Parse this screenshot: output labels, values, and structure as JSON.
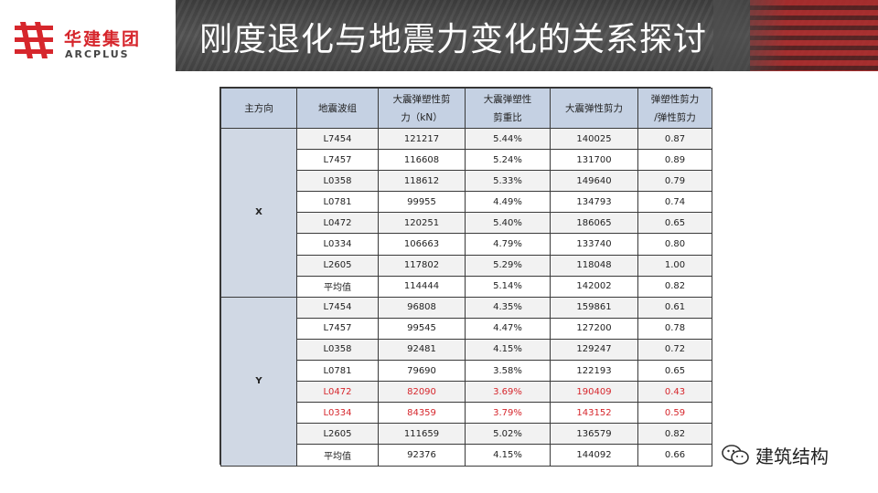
{
  "header": {
    "logo_cn": "华建集团",
    "logo_en": "ARCPLUS",
    "title": "刚度退化与地震力变化的关系探讨"
  },
  "table": {
    "columns": [
      "主方向",
      "地震波组",
      "大震弹塑性剪力（kN）",
      "大震弹塑性剪重比",
      "大震弹性剪力",
      "弹塑性剪力/弹性剪力"
    ],
    "column_lines": [
      [
        "主方向"
      ],
      [
        "地震波组"
      ],
      [
        "大震弹塑性剪",
        "力（kN）"
      ],
      [
        "大震弹塑性",
        "剪重比"
      ],
      [
        "大震弹性剪力"
      ],
      [
        "弹塑性剪力",
        "/弹性剪力"
      ]
    ],
    "groups": [
      {
        "direction": "X",
        "rows": [
          {
            "wave": "L7454",
            "ep_shear": "121217",
            "ratio": "5.44%",
            "el_shear": "140025",
            "quot": "0.87",
            "highlight": false
          },
          {
            "wave": "L7457",
            "ep_shear": "116608",
            "ratio": "5.24%",
            "el_shear": "131700",
            "quot": "0.89",
            "highlight": false
          },
          {
            "wave": "L0358",
            "ep_shear": "118612",
            "ratio": "5.33%",
            "el_shear": "149640",
            "quot": "0.79",
            "highlight": false
          },
          {
            "wave": "L0781",
            "ep_shear": "99955",
            "ratio": "4.49%",
            "el_shear": "134793",
            "quot": "0.74",
            "highlight": false
          },
          {
            "wave": "L0472",
            "ep_shear": "120251",
            "ratio": "5.40%",
            "el_shear": "186065",
            "quot": "0.65",
            "highlight": false
          },
          {
            "wave": "L0334",
            "ep_shear": "106663",
            "ratio": "4.79%",
            "el_shear": "133740",
            "quot": "0.80",
            "highlight": false
          },
          {
            "wave": "L2605",
            "ep_shear": "117802",
            "ratio": "5.29%",
            "el_shear": "118048",
            "quot": "1.00",
            "highlight": false
          },
          {
            "wave": "平均值",
            "ep_shear": "114444",
            "ratio": "5.14%",
            "el_shear": "142002",
            "quot": "0.82",
            "highlight": false
          }
        ]
      },
      {
        "direction": "Y",
        "rows": [
          {
            "wave": "L7454",
            "ep_shear": "96808",
            "ratio": "4.35%",
            "el_shear": "159861",
            "quot": "0.61",
            "highlight": false
          },
          {
            "wave": "L7457",
            "ep_shear": "99545",
            "ratio": "4.47%",
            "el_shear": "127200",
            "quot": "0.78",
            "highlight": false
          },
          {
            "wave": "L0358",
            "ep_shear": "92481",
            "ratio": "4.15%",
            "el_shear": "129247",
            "quot": "0.72",
            "highlight": false
          },
          {
            "wave": "L0781",
            "ep_shear": "79690",
            "ratio": "3.58%",
            "el_shear": "122193",
            "quot": "0.65",
            "highlight": false
          },
          {
            "wave": "L0472",
            "ep_shear": "82090",
            "ratio": "3.69%",
            "el_shear": "190409",
            "quot": "0.43",
            "highlight": true
          },
          {
            "wave": "L0334",
            "ep_shear": "84359",
            "ratio": "3.79%",
            "el_shear": "143152",
            "quot": "0.59",
            "highlight": true
          },
          {
            "wave": "L2605",
            "ep_shear": "111659",
            "ratio": "5.02%",
            "el_shear": "136579",
            "quot": "0.82",
            "highlight": false
          },
          {
            "wave": "平均值",
            "ep_shear": "92376",
            "ratio": "4.15%",
            "el_shear": "144092",
            "quot": "0.66",
            "highlight": false
          }
        ]
      }
    ]
  },
  "watermark": {
    "icon": "wechat-icon",
    "text": "建筑结构"
  },
  "colors": {
    "brand_red": "#d6262c",
    "header_gray": "#4a4a4a",
    "table_header": "#c5d1e3",
    "group_cell": "#d0d8e4",
    "highlight_text": "#d6262c"
  }
}
